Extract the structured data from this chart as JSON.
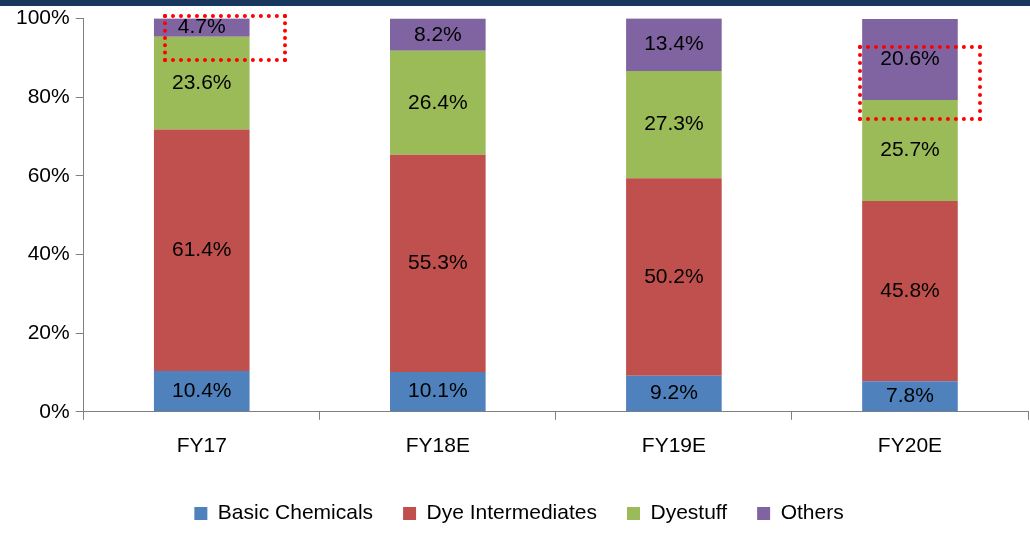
{
  "chart_data": {
    "type": "bar",
    "stacked": true,
    "categories": [
      "FY17",
      "FY18E",
      "FY19E",
      "FY20E"
    ],
    "series": [
      {
        "name": "Basic Chemicals",
        "color": "#4f81bd",
        "values": [
          10.4,
          10.1,
          9.2,
          7.8
        ],
        "value_labels": [
          "10.4%",
          "10.1%",
          "9.2%",
          "7.8%"
        ]
      },
      {
        "name": "Dye Intermediates",
        "color": "#c0504d",
        "values": [
          61.4,
          55.3,
          50.2,
          45.8
        ],
        "value_labels": [
          "61.4%",
          "55.3%",
          "50.2%",
          "45.8%"
        ]
      },
      {
        "name": "Dyestuff",
        "color": "#9bbb59",
        "values": [
          23.6,
          26.4,
          27.3,
          25.7
        ],
        "value_labels": [
          "23.6%",
          "26.4%",
          "27.3%",
          "25.7%"
        ]
      },
      {
        "name": "Others",
        "color": "#8064a2",
        "values": [
          4.7,
          8.2,
          13.4,
          20.6
        ],
        "value_labels": [
          "4.7%",
          "8.2%",
          "13.4%",
          "20.6%"
        ]
      }
    ],
    "ylim": [
      0,
      100
    ],
    "yticks": [
      {
        "value": 0,
        "label": "0%"
      },
      {
        "value": 20,
        "label": "20%"
      },
      {
        "value": 40,
        "label": "40%"
      },
      {
        "value": 60,
        "label": "60%"
      },
      {
        "value": 80,
        "label": "80%"
      },
      {
        "value": 100,
        "label": "100%"
      }
    ],
    "grid": false,
    "legend": "bottom"
  }
}
